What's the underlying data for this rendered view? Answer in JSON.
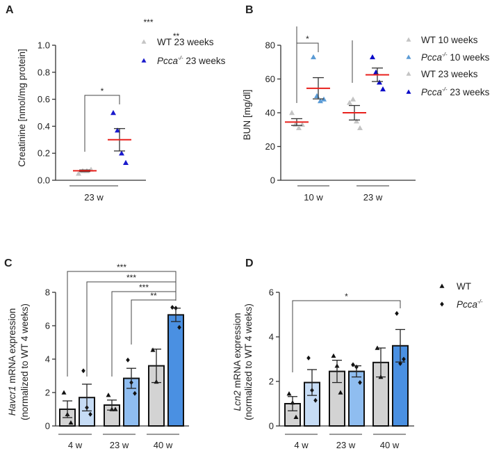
{
  "chart_data": [
    {
      "panel": "A",
      "type": "scatter",
      "ylabel": [
        {
          "text": "Creatinine [nmol/mg protein]"
        }
      ],
      "ylim": [
        0,
        1.0
      ],
      "yticks": [
        0,
        0.2,
        0.4,
        0.6,
        0.8,
        1.0
      ],
      "ytick_labels": [
        "0.0",
        "0.2",
        "0.4",
        "0.6",
        "0.8",
        "1.0"
      ],
      "groups": [
        "23 w"
      ],
      "series": [
        {
          "legend": {
            "italic": "",
            "sup": "",
            "text": "WT 23 weeks"
          },
          "marker": "triangle",
          "color": "#c4c4c4",
          "data": [
            {
              "group": 0,
              "mean": 0.07,
              "sem": 0.006,
              "points": [
                0.05,
                0.07,
                0.07,
                0.08
              ]
            }
          ]
        },
        {
          "legend": {
            "italic": "Pcca",
            "sup": "-/-",
            "text": " 23 weeks"
          },
          "marker": "triangle",
          "color": "#1a1acc",
          "data": [
            {
              "group": 0,
              "mean": 0.3,
              "sem": 0.083,
              "points": [
                0.5,
                0.37,
                0.2,
                0.13
              ]
            }
          ]
        }
      ],
      "mean_color": "#e8201c",
      "brackets": [
        {
          "label": "*",
          "from": [
            0,
            0
          ],
          "to": [
            1,
            0
          ]
        }
      ]
    },
    {
      "panel": "B",
      "type": "scatter",
      "ylabel": [
        {
          "text": "BUN [mg/dl]"
        }
      ],
      "ylim": [
        0,
        80
      ],
      "yticks": [
        0,
        20,
        40,
        60,
        80
      ],
      "ytick_labels": [
        "0",
        "20",
        "40",
        "60",
        "80"
      ],
      "groups": [
        "10 w",
        "23 w"
      ],
      "series": [
        {
          "legend": {
            "italic": "",
            "sup": "",
            "text": "WT 10 weeks"
          },
          "marker": "triangle",
          "color": "#c4c4c4",
          "data": [
            {
              "group": 0,
              "mean": 34.5,
              "sem": 2.0,
              "points": [
                40,
                33,
                31,
                33
              ]
            }
          ]
        },
        {
          "legend": {
            "italic": "Pcca",
            "sup": "-/-",
            "text": " 10 weeks"
          },
          "marker": "triangle",
          "color": "#5b9bd5",
          "data": [
            {
              "group": 0,
              "mean": 54.5,
              "sem": 6.3,
              "points": [
                73,
                50,
                47,
                48
              ]
            }
          ]
        },
        {
          "legend": {
            "italic": "",
            "sup": "",
            "text": "WT 23 weeks"
          },
          "marker": "triangle",
          "color": "#c4c4c4",
          "data": [
            {
              "group": 1,
              "mean": 40,
              "sem": 4.3,
              "points": [
                46,
                48,
                35,
                31
              ]
            }
          ]
        },
        {
          "legend": {
            "italic": "Pcca",
            "sup": "-/-",
            "text": " 23 weeks"
          },
          "marker": "triangle",
          "color": "#0a0ac8",
          "data": [
            {
              "group": 1,
              "mean": 62.5,
              "sem": 4.0,
              "points": [
                73,
                64,
                58,
                54
              ]
            }
          ]
        }
      ],
      "mean_color": "#e8201c",
      "brackets": [
        {
          "label": "***",
          "from": [
            0,
            0
          ],
          "to": [
            3,
            0
          ]
        },
        {
          "label": "**",
          "from": [
            2,
            0
          ],
          "to": [
            3,
            0
          ]
        },
        {
          "label": "*",
          "from": [
            0,
            0
          ],
          "to": [
            1,
            0
          ]
        }
      ]
    },
    {
      "panel": "C",
      "type": "bar",
      "ylabel": [
        {
          "italic": "Havcr1",
          "text": " mRNA expression"
        },
        {
          "text": "(normalized to WT 4 weeks)"
        }
      ],
      "ylim": [
        0,
        8
      ],
      "yticks": [
        0,
        2,
        4,
        6,
        8
      ],
      "ytick_labels": [
        "0",
        "2",
        "4",
        "6",
        "8"
      ],
      "groups": [
        "4 w",
        "23 w",
        "40 w"
      ],
      "series": [
        {
          "legend": {
            "italic": "",
            "sup": "",
            "text": "WT"
          },
          "marker": "triangle",
          "colors": [
            "#d3d3d3",
            "#d3d3d3",
            "#d3d3d3"
          ],
          "data": [
            {
              "group": 0,
              "mean": 1.0,
              "sem": 0.5,
              "points": [
                2.0,
                0.7,
                0.2
              ]
            },
            {
              "group": 1,
              "mean": 1.25,
              "sem": 0.3,
              "points": [
                1.85,
                1.0,
                1.0
              ]
            },
            {
              "group": 2,
              "mean": 3.6,
              "sem": 1.0,
              "points": [
                4.55,
                2.65
              ]
            }
          ]
        },
        {
          "legend": {
            "italic": "Pcca",
            "sup": "-/-",
            "text": ""
          },
          "marker": "diamond",
          "colors": [
            "#c6dcf5",
            "#8fbdf0",
            "#4a90e2"
          ],
          "data": [
            {
              "group": 0,
              "mean": 1.7,
              "sem": 0.8,
              "points": [
                3.3,
                1.1,
                0.7
              ]
            },
            {
              "group": 1,
              "mean": 2.85,
              "sem": 0.6,
              "points": [
                3.95,
                2.6,
                1.95
              ]
            },
            {
              "group": 2,
              "mean": 6.65,
              "sem": 0.4,
              "points": [
                7.1,
                7.05,
                5.9
              ]
            }
          ]
        }
      ],
      "brackets": [
        {
          "label": "***",
          "from": [
            0,
            0
          ],
          "to": [
            1,
            2
          ]
        },
        {
          "label": "***",
          "from": [
            1,
            0
          ],
          "to": [
            1,
            2
          ]
        },
        {
          "label": "***",
          "from": [
            0,
            1
          ],
          "to": [
            1,
            2
          ]
        },
        {
          "label": "**",
          "from": [
            1,
            1
          ],
          "to": [
            1,
            2
          ]
        }
      ]
    },
    {
      "panel": "D",
      "type": "bar",
      "ylabel": [
        {
          "italic": "Lcn2",
          "text": " mRNA expression"
        },
        {
          "text": "(normalized to WT 4 weeks)"
        }
      ],
      "ylim": [
        0,
        6
      ],
      "yticks": [
        0,
        2,
        4,
        6
      ],
      "ytick_labels": [
        "0",
        "2",
        "4",
        "6"
      ],
      "groups": [
        "4 w",
        "23 w",
        "40 w"
      ],
      "series": [
        {
          "legend": {
            "italic": "",
            "sup": "",
            "text": "WT"
          },
          "marker": "triangle",
          "colors": [
            "#d3d3d3",
            "#d3d3d3",
            "#d3d3d3"
          ],
          "data": [
            {
              "group": 0,
              "mean": 1.0,
              "sem": 0.32,
              "points": [
                1.45,
                1.05,
                0.4
              ]
            },
            {
              "group": 1,
              "mean": 2.45,
              "sem": 0.5,
              "points": [
                3.15,
                2.7,
                1.5
              ]
            },
            {
              "group": 2,
              "mean": 2.85,
              "sem": 0.65,
              "points": [
                3.5,
                2.2
              ]
            }
          ]
        },
        {
          "legend": {
            "italic": "Pcca",
            "sup": "-/-",
            "text": ""
          },
          "marker": "diamond",
          "colors": [
            "#c6dcf5",
            "#8fbdf0",
            "#4a90e2"
          ],
          "data": [
            {
              "group": 0,
              "mean": 1.95,
              "sem": 0.58,
              "points": [
                3.05,
                1.6,
                1.15
              ]
            },
            {
              "group": 1,
              "mean": 2.45,
              "sem": 0.25,
              "points": [
                2.75,
                2.65,
                1.95
              ]
            },
            {
              "group": 2,
              "mean": 3.6,
              "sem": 0.73,
              "points": [
                5.05,
                2.8,
                3.0
              ]
            }
          ]
        }
      ],
      "brackets": [
        {
          "label": "*",
          "from": [
            0,
            0
          ],
          "to": [
            1,
            2
          ]
        }
      ],
      "show_legend": true
    }
  ]
}
